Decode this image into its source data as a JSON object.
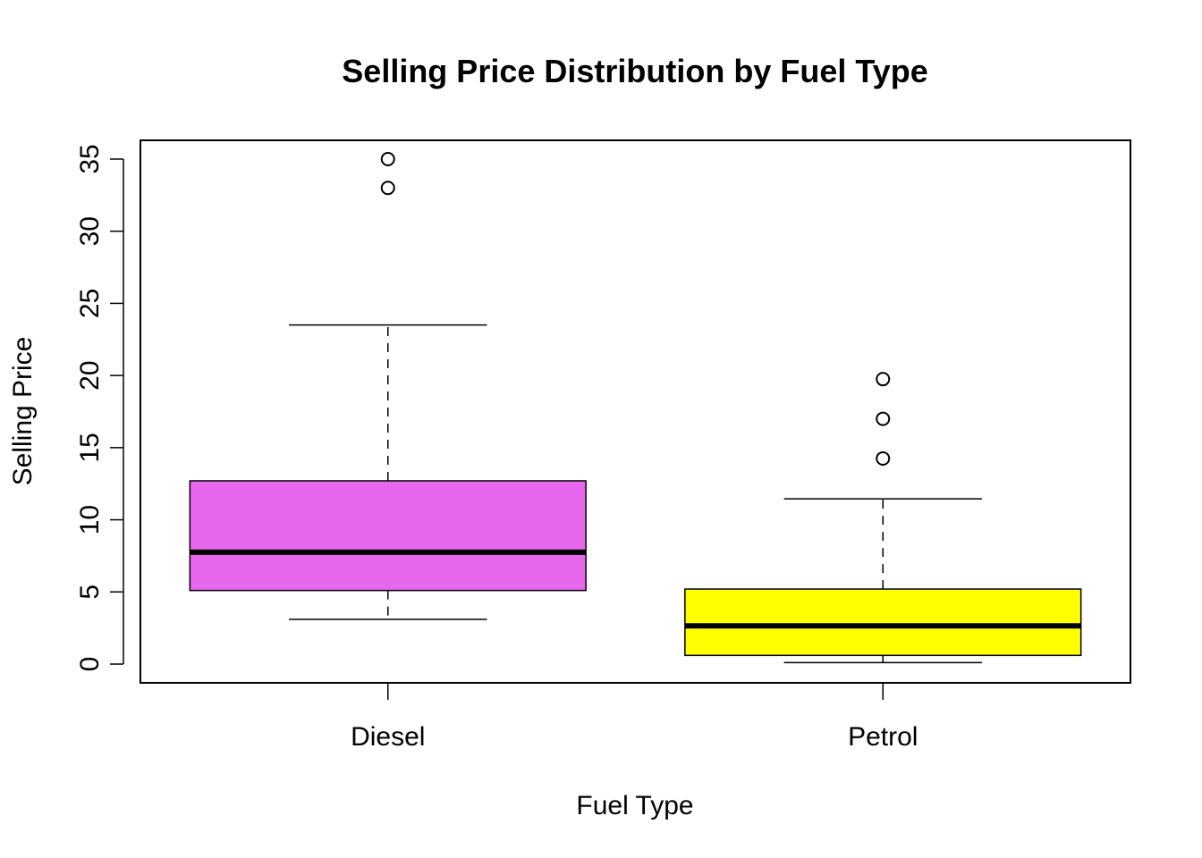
{
  "chart_data": {
    "type": "boxplot",
    "title": "Selling Price Distribution by Fuel Type",
    "xlabel": "Fuel Type",
    "ylabel": "Selling Price",
    "categories": [
      "Diesel",
      "Petrol"
    ],
    "ylim": [
      -1.3,
      36.3
    ],
    "yticks": [
      "0",
      "5",
      "10",
      "15",
      "20",
      "25",
      "30",
      "35"
    ],
    "boxes": [
      {
        "name": "Diesel",
        "color": "#E667EB",
        "whisker_low": 3.1,
        "q1": 5.1,
        "median": 7.75,
        "q3": 12.7,
        "whisker_high": 23.5,
        "outliers": [
          33.0,
          35.0
        ]
      },
      {
        "name": "Petrol",
        "color": "#FFFF00",
        "whisker_low": 0.1,
        "q1": 0.6,
        "median": 2.65,
        "q3": 5.2,
        "whisker_high": 11.45,
        "outliers": [
          14.25,
          17.0,
          19.75
        ]
      }
    ],
    "grid": false,
    "legend": "none"
  }
}
